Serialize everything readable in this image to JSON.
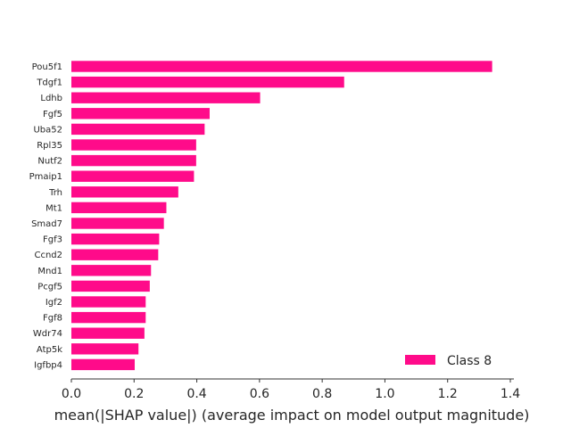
{
  "chart_data": {
    "type": "bar",
    "orientation": "horizontal",
    "categories": [
      "Pou5f1",
      "Tdgf1",
      "Ldhb",
      "Fgf5",
      "Uba52",
      "Rpl35",
      "Nutf2",
      "Pmaip1",
      "Trh",
      "Mt1",
      "Smad7",
      "Fgf3",
      "Ccnd2",
      "Mnd1",
      "Pcgf5",
      "Igf2",
      "Fgf8",
      "Wdr74",
      "Atp5k",
      "Igfbp4"
    ],
    "series": [
      {
        "name": "Class 8",
        "color": "#ff0b8a",
        "values": [
          1.342,
          0.87,
          0.602,
          0.441,
          0.425,
          0.398,
          0.398,
          0.391,
          0.341,
          0.303,
          0.295,
          0.28,
          0.277,
          0.254,
          0.25,
          0.237,
          0.237,
          0.233,
          0.214,
          0.202
        ]
      }
    ],
    "title": "",
    "xlabel": "mean(|SHAP value|) (average impact on model output magnitude)",
    "ylabel": "",
    "xlim": [
      0,
      1.4
    ],
    "xticks": [
      "0.0",
      "0.2",
      "0.4",
      "0.6",
      "0.8",
      "1.0",
      "1.2",
      "1.4"
    ],
    "grid": false,
    "legend_position": "bottom-right"
  }
}
